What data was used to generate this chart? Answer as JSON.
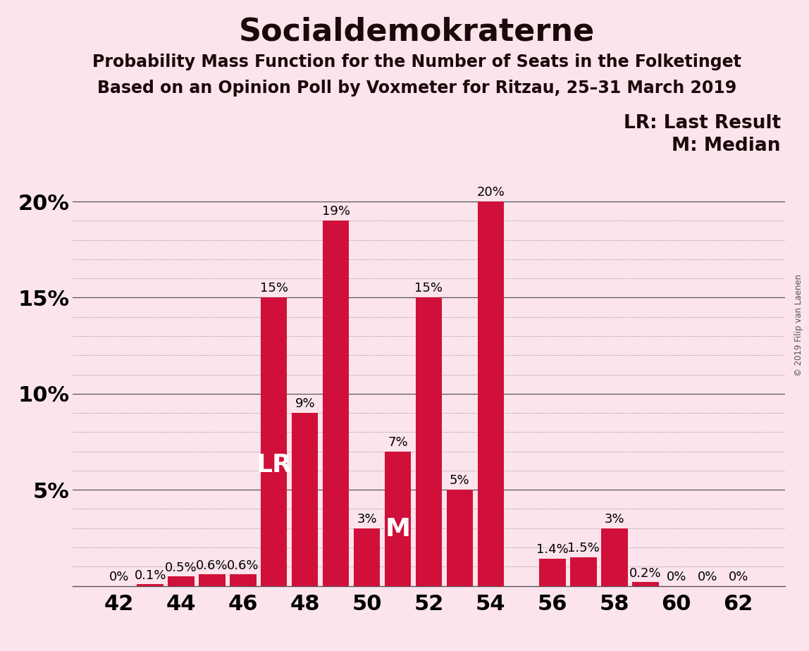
{
  "title": "Socialdemokraterne",
  "subtitle1": "Probability Mass Function for the Number of Seats in the Folketinget",
  "subtitle2": "Based on an Opinion Poll by Voxmeter for Ritzau, 25–31 March 2019",
  "copyright": "© 2019 Filip van Laenen",
  "seats": [
    42,
    43,
    44,
    45,
    46,
    47,
    48,
    49,
    50,
    51,
    52,
    53,
    54,
    55,
    56,
    57,
    58,
    59,
    60,
    61,
    62
  ],
  "probabilities": [
    0.0,
    0.1,
    0.5,
    0.6,
    0.6,
    15.0,
    9.0,
    19.0,
    3.0,
    7.0,
    15.0,
    5.0,
    20.0,
    0.0,
    1.4,
    1.5,
    3.0,
    0.2,
    0.0,
    0.0,
    0.0
  ],
  "labels": [
    "0%",
    "0.1%",
    "0.5%",
    "0.6%",
    "0.6%",
    "15%",
    "9%",
    "19%",
    "3%",
    "7%",
    "15%",
    "5%",
    "20%",
    "",
    "1.4%",
    "1.5%",
    "3%",
    "0.2%",
    "0%",
    "0%",
    "0%"
  ],
  "bar_color": "#d0103a",
  "background_color": "#fce4ec",
  "text_color": "#1a0a0a",
  "lr_seat": 47,
  "median_seat": 51,
  "lr_label": "LR",
  "median_label": "M",
  "lr_legend": "LR: Last Result",
  "median_legend": "M: Median",
  "ylim": [
    0,
    21
  ],
  "yticks": [
    0,
    5,
    10,
    15,
    20
  ],
  "ytick_labels": [
    "",
    "5%",
    "10%",
    "15%",
    "20%"
  ],
  "xticks": [
    42,
    44,
    46,
    48,
    50,
    52,
    54,
    56,
    58,
    60,
    62
  ],
  "title_fontsize": 32,
  "subtitle_fontsize": 17,
  "axis_fontsize": 22,
  "label_fontsize": 13,
  "legend_fontsize": 19,
  "bar_label_fontsize": 13,
  "inbar_fontsize": 26
}
